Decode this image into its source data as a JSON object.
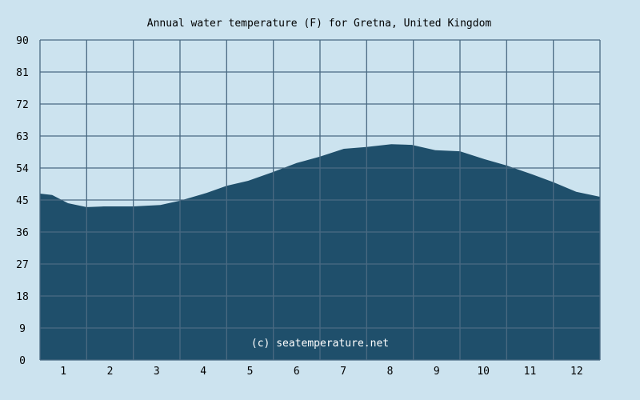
{
  "chart_data": {
    "type": "area",
    "title": "Annual water temperature (F) for Gretna, United Kingdom",
    "xlabel": "",
    "ylabel": "",
    "x_ticks": [
      "1",
      "2",
      "3",
      "4",
      "5",
      "6",
      "7",
      "8",
      "9",
      "10",
      "11",
      "12"
    ],
    "y_ticks": [
      "0",
      "9",
      "18",
      "27",
      "36",
      "45",
      "54",
      "63",
      "72",
      "81",
      "90"
    ],
    "ylim": [
      0,
      90
    ],
    "xlim": [
      0.5,
      12.5
    ],
    "grid": true,
    "series": [
      {
        "name": "Water temperature (F)",
        "x": [
          0.5,
          0.76,
          1.1,
          1.5,
          1.87,
          2.5,
          3.08,
          3.5,
          4.07,
          4.5,
          4.96,
          5.5,
          6.0,
          6.5,
          7.01,
          7.49,
          8.03,
          8.47,
          8.97,
          9.5,
          10.02,
          10.5,
          11.05,
          11.5,
          11.99,
          12.5
        ],
        "values": [
          46.8,
          46.4,
          44.1,
          43.0,
          43.2,
          43.2,
          43.6,
          44.8,
          47.0,
          49.0,
          50.4,
          52.9,
          55.4,
          57.2,
          59.4,
          59.9,
          60.7,
          60.5,
          59.0,
          58.7,
          56.5,
          54.7,
          52.2,
          50.0,
          47.3,
          45.9
        ]
      }
    ],
    "annotations": [
      "(c) seatemperature.net"
    ],
    "colors": {
      "background": "#cce3ef",
      "fill": "#1f4f6b",
      "grid": "#4a6a82"
    }
  }
}
